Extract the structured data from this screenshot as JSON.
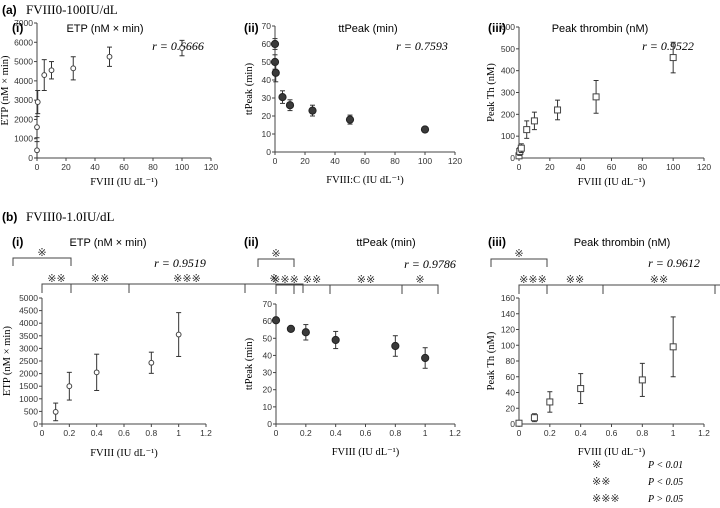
{
  "figure": {
    "section_a": {
      "label": "(a)",
      "title": "FVIII0-100IU/dL"
    },
    "section_b": {
      "label": "(b)",
      "title": "FVIII0-1.0IU/dL"
    }
  },
  "legend": [
    {
      "symbol": "※",
      "text": "P < 0.01"
    },
    {
      "symbol": "※※",
      "text": "P < 0.05"
    },
    {
      "symbol": "※※※",
      "text": "P > 0.05"
    }
  ],
  "chart_data": [
    {
      "id": "a-i",
      "type": "scatter",
      "panel": "(i)",
      "title": "ETP (nM × min)",
      "r": "r = 0.6666",
      "xlabel": "FVIII  (IU dL⁻¹)",
      "ylabel": "ETP (nM × min)",
      "xlim": [
        0,
        120
      ],
      "ylim": [
        0,
        7000
      ],
      "xticks": [
        "0",
        "20",
        "40",
        "60",
        "80",
        "100",
        "120"
      ],
      "yticks": [
        "0",
        "1000",
        "2000",
        "3000",
        "4000",
        "5000",
        "6000",
        "7000"
      ],
      "marker": "circle-open",
      "grid": false,
      "points": [
        {
          "x": 0,
          "y": 400,
          "err": 450
        },
        {
          "x": 0,
          "y": 1600,
          "err": 550
        },
        {
          "x": 0.5,
          "y": 2900,
          "err": 600
        },
        {
          "x": 5,
          "y": 4300,
          "err": 800
        },
        {
          "x": 10,
          "y": 4550,
          "err": 450
        },
        {
          "x": 25,
          "y": 4650,
          "err": 600
        },
        {
          "x": 50,
          "y": 5250,
          "err": 500
        },
        {
          "x": 100,
          "y": 5700,
          "err": 400
        }
      ]
    },
    {
      "id": "a-ii",
      "type": "scatter",
      "panel": "(ii)",
      "title": "ttPeak (min)",
      "r": "r = 0.7593",
      "xlabel": "FVIII:C  (IU dL⁻¹)",
      "ylabel": "ttPeak (min)",
      "xlim": [
        0,
        120
      ],
      "ylim": [
        0,
        70
      ],
      "xticks": [
        "0",
        "20",
        "40",
        "60",
        "80",
        "100",
        "120"
      ],
      "yticks": [
        "0",
        "10",
        "20",
        "30",
        "40",
        "50",
        "60",
        "70"
      ],
      "marker": "circle-filled",
      "grid": false,
      "points": [
        {
          "x": 0,
          "y": 60,
          "err": 3
        },
        {
          "x": 0,
          "y": 50,
          "err": 4
        },
        {
          "x": 0.5,
          "y": 44,
          "err": 5
        },
        {
          "x": 5,
          "y": 30.5,
          "err": 3.5
        },
        {
          "x": 10,
          "y": 26,
          "err": 3
        },
        {
          "x": 25,
          "y": 23,
          "err": 3
        },
        {
          "x": 50,
          "y": 18,
          "err": 2.5
        },
        {
          "x": 100,
          "y": 12.5,
          "err": 1.5
        }
      ]
    },
    {
      "id": "a-iii",
      "type": "scatter",
      "panel": "(iii)",
      "title": "Peak thrombin (nM)",
      "r": "r = 0.9522",
      "xlabel": "FVIII  (IU dL⁻¹)",
      "ylabel": "Peak Th (nM)",
      "xlim": [
        0,
        120
      ],
      "ylim": [
        0,
        600
      ],
      "xticks": [
        "0",
        "20",
        "40",
        "60",
        "80",
        "100",
        "120"
      ],
      "yticks": [
        "0",
        "100",
        "200",
        "300",
        "400",
        "500",
        "600"
      ],
      "marker": "square-open",
      "grid": false,
      "points": [
        {
          "x": 0,
          "y": 10,
          "err": 8
        },
        {
          "x": 0.5,
          "y": 30,
          "err": 18
        },
        {
          "x": 1.5,
          "y": 45,
          "err": 20
        },
        {
          "x": 5,
          "y": 130,
          "err": 40
        },
        {
          "x": 10,
          "y": 170,
          "err": 40
        },
        {
          "x": 25,
          "y": 220,
          "err": 45
        },
        {
          "x": 50,
          "y": 280,
          "err": 75
        },
        {
          "x": 100,
          "y": 460,
          "err": 70
        }
      ]
    },
    {
      "id": "b-i",
      "type": "scatter",
      "panel": "(i)",
      "title": "ETP (nM × min)",
      "r": "r = 0.9519",
      "xlabel": "FVIII  (IU dL⁻¹)",
      "ylabel": "ETP (nM × min)",
      "xlim": [
        0,
        1.2
      ],
      "ylim": [
        0,
        5000
      ],
      "xticks": [
        "0",
        "0.2",
        "0.4",
        "0.6",
        "0.8",
        "1",
        "1.2"
      ],
      "yticks": [
        "0",
        "500",
        "1000",
        "1500",
        "2000",
        "2500",
        "3000",
        "3500",
        "4000",
        "4500",
        "5000"
      ],
      "marker": "circle-open",
      "grid": false,
      "points": [
        {
          "x": 0.1,
          "y": 480,
          "err": 350
        },
        {
          "x": 0.2,
          "y": 1500,
          "err": 550
        },
        {
          "x": 0.4,
          "y": 2050,
          "err": 720
        },
        {
          "x": 0.8,
          "y": 2430,
          "err": 420
        },
        {
          "x": 1.0,
          "y": 3550,
          "err": 870
        }
      ],
      "significance": [
        {
          "from": 0,
          "to": 0.2,
          "row": 0,
          "mark": "※"
        },
        {
          "from": 0.1,
          "to": 0.2,
          "row": 1,
          "mark": "※※"
        },
        {
          "from": 0.2,
          "to": 0.4,
          "row": 1,
          "mark": "※※"
        },
        {
          "from": 0.4,
          "to": 0.8,
          "row": 1,
          "mark": "※※※"
        },
        {
          "from": 0.8,
          "to": 1.0,
          "row": 1,
          "mark": "※"
        }
      ]
    },
    {
      "id": "b-ii",
      "type": "scatter",
      "panel": "(ii)",
      "title": "ttPeak (min)",
      "r": "r = 0.9786",
      "xlabel": "FVIII  (IU dL⁻¹)",
      "ylabel": "ttPeak (min)",
      "xlim": [
        0,
        1.2
      ],
      "ylim": [
        0,
        70
      ],
      "xticks": [
        "0",
        "0.2",
        "0.4",
        "0.6",
        "0.8",
        "1",
        "1.2"
      ],
      "yticks": [
        "0",
        "10",
        "20",
        "30",
        "40",
        "50",
        "60",
        "70"
      ],
      "marker": "circle-filled",
      "grid": false,
      "points": [
        {
          "x": 0,
          "y": 60.5,
          "err": 1.5
        },
        {
          "x": 0.1,
          "y": 55.5,
          "err": 1.5
        },
        {
          "x": 0.2,
          "y": 53.5,
          "err": 4.5
        },
        {
          "x": 0.4,
          "y": 49,
          "err": 5
        },
        {
          "x": 0.8,
          "y": 45.5,
          "err": 6
        },
        {
          "x": 1.0,
          "y": 38.5,
          "err": 6
        }
      ],
      "significance": [
        {
          "from": 0,
          "to": 0.2,
          "row": 0,
          "mark": "※"
        },
        {
          "from": 0.1,
          "to": 0.2,
          "row": 1,
          "mark": "※※※"
        },
        {
          "from": 0.2,
          "to": 0.4,
          "row": 1,
          "mark": "※※"
        },
        {
          "from": 0.4,
          "to": 0.8,
          "row": 1,
          "mark": "※※"
        },
        {
          "from": 0.8,
          "to": 1.0,
          "row": 1,
          "mark": "※"
        }
      ]
    },
    {
      "id": "b-iii",
      "type": "scatter",
      "panel": "(iii)",
      "title": "Peak thrombin (nM)",
      "r": "r = 0.9612",
      "xlabel": "FVIII  (IU dL⁻¹)",
      "ylabel": "Peak Th (nM)",
      "xlim": [
        0,
        1.2
      ],
      "ylim": [
        0,
        160
      ],
      "xticks": [
        "0",
        "0.2",
        "0.4",
        "0.6",
        "0.8",
        "1",
        "1.2"
      ],
      "yticks": [
        "0",
        "20",
        "40",
        "60",
        "80",
        "100",
        "120",
        "140",
        "160"
      ],
      "marker": "square-open",
      "grid": false,
      "points": [
        {
          "x": 0,
          "y": 1,
          "err": 1
        },
        {
          "x": 0.1,
          "y": 8,
          "err": 5
        },
        {
          "x": 0.2,
          "y": 28,
          "err": 13
        },
        {
          "x": 0.4,
          "y": 45,
          "err": 19
        },
        {
          "x": 0.8,
          "y": 56,
          "err": 21
        },
        {
          "x": 1.0,
          "y": 98,
          "err": 38
        }
      ],
      "significance": [
        {
          "from": 0,
          "to": 0.2,
          "row": 0,
          "mark": "※"
        },
        {
          "from": 0.1,
          "to": 0.2,
          "row": 1,
          "mark": "※※※"
        },
        {
          "from": 0.2,
          "to": 0.4,
          "row": 1,
          "mark": "※※"
        },
        {
          "from": 0.4,
          "to": 0.8,
          "row": 1,
          "mark": "※※"
        },
        {
          "from": 0.8,
          "to": 1.0,
          "row": 1,
          "mark": "※"
        }
      ]
    }
  ]
}
